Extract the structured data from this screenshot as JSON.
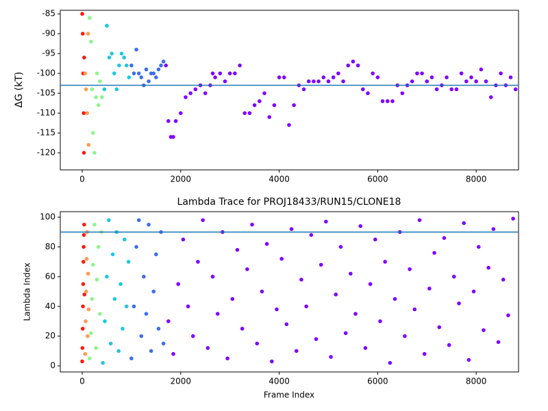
{
  "chart_data": [
    {
      "type": "scatter",
      "y_label": "ΔG (kT)",
      "xlim": [
        -445,
        8860
      ],
      "ylim": [
        -124.3,
        -84.1
      ],
      "xticks": [
        0,
        2000,
        4000,
        6000,
        8000
      ],
      "yticks": [
        -120,
        -115,
        -110,
        -105,
        -100,
        -95,
        -90,
        -85
      ],
      "hline": {
        "value": -103,
        "color": "#1f77b4"
      },
      "series": [
        {
          "color": "#ff1a0d",
          "x": [
            0,
            10,
            20,
            30,
            35,
            40
          ],
          "values": [
            -85,
            -90,
            -100,
            -110,
            -120,
            -96
          ]
        },
        {
          "color": "#ff9a50",
          "x": [
            60,
            80,
            100,
            120,
            130
          ],
          "values": [
            -100,
            -104,
            -110,
            -90,
            -118
          ]
        },
        {
          "color": "#8cf58c",
          "x": [
            150,
            180,
            200,
            220,
            250,
            280,
            300,
            330,
            360,
            400
          ],
          "values": [
            -86,
            -92,
            -104,
            -115,
            -120,
            -106,
            -100,
            -108,
            -102,
            -106
          ]
        },
        {
          "color": "#1ec8e0",
          "x": [
            450,
            500,
            550,
            600,
            650,
            700,
            750,
            800,
            850,
            900,
            950
          ],
          "values": [
            -104,
            -88,
            -96,
            -95,
            -100,
            -104,
            -98,
            -95,
            -96,
            -98,
            -101
          ]
        },
        {
          "color": "#3c6ef0",
          "x": [
            1000,
            1050,
            1100,
            1150,
            1200,
            1250,
            1300,
            1350,
            1400,
            1450,
            1500,
            1550,
            1600,
            1650
          ],
          "values": [
            -98,
            -100,
            -94,
            -100,
            -101,
            -103,
            -99,
            -102,
            -100,
            -100,
            -101,
            -99,
            -98,
            -97
          ]
        },
        {
          "color": "#8000ff",
          "x": [
            1700,
            1750,
            1800,
            1850,
            1900,
            2000,
            2100,
            2200,
            2300,
            2400,
            2500,
            2600,
            2650,
            2700,
            2800,
            2900,
            3000,
            3100,
            3200,
            3300,
            3400,
            3500,
            3600,
            3700,
            3800,
            3900,
            4000,
            4100,
            4200,
            4300,
            4400,
            4500,
            4600,
            4700,
            4800,
            4900,
            5000,
            5100,
            5200,
            5300,
            5400,
            5500,
            5600,
            5700,
            5800,
            5900,
            6000,
            6100,
            6200,
            6300,
            6400,
            6500,
            6600,
            6700,
            6800,
            6900,
            7000,
            7100,
            7200,
            7300,
            7400,
            7500,
            7600,
            7700,
            7800,
            7900,
            8000,
            8100,
            8200,
            8300,
            8400,
            8500,
            8600,
            8700,
            8800
          ],
          "values": [
            -98,
            -112,
            -116,
            -116,
            -112,
            -110,
            -106,
            -105,
            -104,
            -103,
            -105,
            -103,
            -100,
            -101,
            -100,
            -102,
            -100,
            -100,
            -98,
            -110,
            -110,
            -108,
            -107,
            -105,
            -111,
            -108,
            -101,
            -101,
            -113,
            -108,
            -103,
            -104,
            -102,
            -102,
            -102,
            -101,
            -102,
            -101,
            -100,
            -102,
            -98,
            -97,
            -98,
            -104,
            -105,
            -100,
            -101,
            -107,
            -107,
            -107,
            -103,
            -105,
            -103,
            -102,
            -100,
            -100,
            -102,
            -101,
            -104,
            -103,
            -101,
            -104,
            -104,
            -100,
            -102,
            -101,
            -102,
            -99,
            -102,
            -106,
            -103,
            -100,
            -103,
            -101,
            -104
          ]
        }
      ]
    },
    {
      "type": "scatter",
      "title": "Lambda Trace for PROJ18433/RUN15/CLONE18",
      "x_label": "Frame Index",
      "y_label": "Lambda Index",
      "xlim": [
        -445,
        8860
      ],
      "ylim": [
        -4.1,
        103.7
      ],
      "xticks": [
        0,
        2000,
        4000,
        6000,
        8000
      ],
      "yticks": [
        0,
        20,
        40,
        60,
        80,
        100
      ],
      "hline": {
        "value": 90,
        "color": "#1f77b4"
      },
      "series": [
        {
          "color": "#ff1a0d",
          "x": [
            0,
            5,
            10,
            15,
            20,
            25,
            30,
            35,
            40,
            45
          ],
          "values": [
            3,
            12,
            25,
            40,
            55,
            70,
            80,
            88,
            95,
            48
          ]
        },
        {
          "color": "#ff9a50",
          "x": [
            60,
            70,
            80,
            90,
            100,
            110,
            120,
            130
          ],
          "values": [
            8,
            30,
            50,
            72,
            90,
            20,
            62,
            38
          ]
        },
        {
          "color": "#8cf58c",
          "x": [
            150,
            180,
            200,
            220,
            250,
            280,
            300,
            330,
            360,
            390
          ],
          "values": [
            5,
            22,
            45,
            68,
            95,
            12,
            58,
            80,
            35,
            90
          ]
        },
        {
          "color": "#1ec8e0",
          "x": [
            420,
            460,
            500,
            540,
            580,
            620,
            660,
            700,
            740,
            780,
            820,
            860,
            900,
            940
          ],
          "values": [
            2,
            30,
            60,
            98,
            15,
            75,
            45,
            90,
            10,
            55,
            25,
            85,
            40,
            70
          ]
        },
        {
          "color": "#3c6ef0",
          "x": [
            1000,
            1050,
            1100,
            1150,
            1200,
            1250,
            1300,
            1350,
            1400,
            1450,
            1500,
            1550,
            1600,
            1650
          ],
          "values": [
            5,
            40,
            80,
            98,
            20,
            60,
            35,
            95,
            10,
            50,
            75,
            25,
            90,
            15
          ]
        },
        {
          "color": "#8000ff",
          "x": [
            1750,
            1850,
            1950,
            2050,
            2150,
            2250,
            2350,
            2450,
            2550,
            2650,
            2750,
            2850,
            2950,
            3050,
            3150,
            3250,
            3350,
            3450,
            3550,
            3650,
            3750,
            3850,
            3950,
            4050,
            4150,
            4250,
            4350,
            4450,
            4550,
            4650,
            4750,
            4850,
            4950,
            5050,
            5150,
            5250,
            5350,
            5450,
            5550,
            5650,
            5750,
            5850,
            5950,
            6050,
            6150,
            6250,
            6350,
            6450,
            6550,
            6650,
            6750,
            6850,
            6950,
            7050,
            7150,
            7250,
            7350,
            7450,
            7550,
            7650,
            7750,
            7850,
            7950,
            8050,
            8150,
            8250,
            8350,
            8450,
            8550,
            8650,
            8750
          ],
          "values": [
            30,
            8,
            55,
            85,
            40,
            20,
            70,
            98,
            12,
            60,
            35,
            90,
            5,
            45,
            78,
            25,
            65,
            95,
            15,
            50,
            82,
            3,
            38,
            72,
            28,
            92,
            10,
            58,
            40,
            88,
            18,
            68,
            97,
            6,
            48,
            80,
            22,
            62,
            35,
            94,
            12,
            55,
            85,
            30,
            70,
            2,
            45,
            90,
            20,
            65,
            38,
            98,
            8,
            52,
            76,
            26,
            86,
            14,
            60,
            42,
            96,
            4,
            50,
            80,
            24,
            66,
            92,
            16,
            58,
            34,
            99
          ]
        }
      ]
    }
  ]
}
